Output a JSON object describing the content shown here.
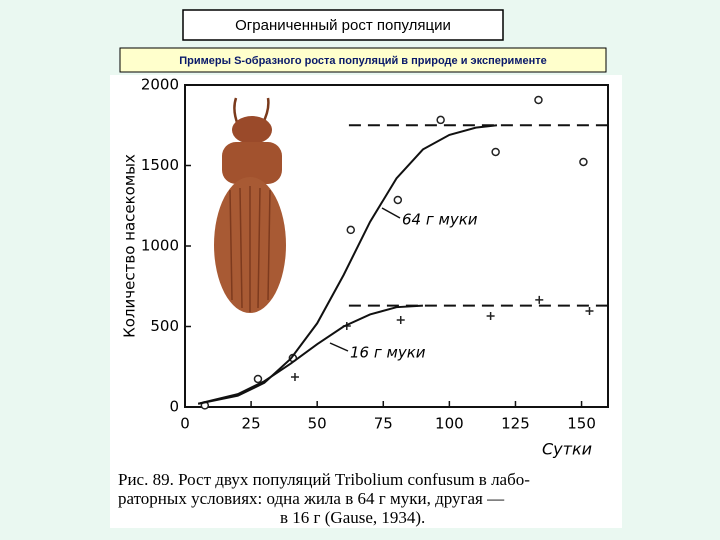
{
  "slide": {
    "title": "Ограниченный рост популяции",
    "subtitle": "Примеры S-образного роста популяций в природе и эксперименте"
  },
  "chart_data": {
    "type": "scatter",
    "y_label": "Количество насекомых",
    "x_label": "Сутки",
    "xlim": [
      0,
      160
    ],
    "ylim": [
      0,
      2000
    ],
    "xticks": [
      0,
      25,
      50,
      75,
      100,
      125,
      150
    ],
    "yticks": [
      0,
      500,
      1000,
      1500,
      2000
    ],
    "annotations": [
      "64 г муки",
      "16 г муки"
    ],
    "series": [
      {
        "marker": "circle",
        "color": "#222222",
        "x": [
          7.5,
          27.6,
          40.8,
          62.7,
          80.5,
          96.7,
          117.5,
          133.7,
          150.7
        ],
        "values": [
          10,
          174,
          304,
          1100,
          1286,
          1783,
          1584,
          1907,
          1522
        ]
      },
      {
        "marker": "plus",
        "color": "#222222",
        "x": [
          41.6,
          61.2,
          81.6,
          115.6,
          134,
          153
        ],
        "values": [
          186,
          503,
          540,
          565,
          665,
          596
        ]
      },
      {
        "marker": "line",
        "color": "#111111",
        "x": [
          5,
          20,
          30,
          40,
          50,
          60,
          70,
          80,
          90,
          100,
          110,
          118
        ],
        "values": [
          20,
          70,
          150,
          300,
          520,
          820,
          1150,
          1420,
          1600,
          1690,
          1735,
          1750
        ]
      },
      {
        "marker": "line",
        "color": "#111111",
        "x": [
          5,
          20,
          30,
          40,
          50,
          60,
          70,
          80,
          90
        ],
        "values": [
          20,
          80,
          160,
          270,
          390,
          500,
          575,
          620,
          630
        ]
      },
      {
        "marker": "dashed",
        "color": "#111111",
        "x": [
          62,
          160
        ],
        "values": [
          1750,
          1750
        ]
      },
      {
        "marker": "dashed",
        "color": "#111111",
        "x": [
          62,
          160
        ],
        "values": [
          630,
          630
        ]
      }
    ]
  },
  "caption": [
    "Рис. 89. Рост двух популяций Tribolium confusum в лабо-",
    "раторных условиях: одна жила в 64 г муки, другая —",
    "в 16 г (Gause, 1934)."
  ]
}
